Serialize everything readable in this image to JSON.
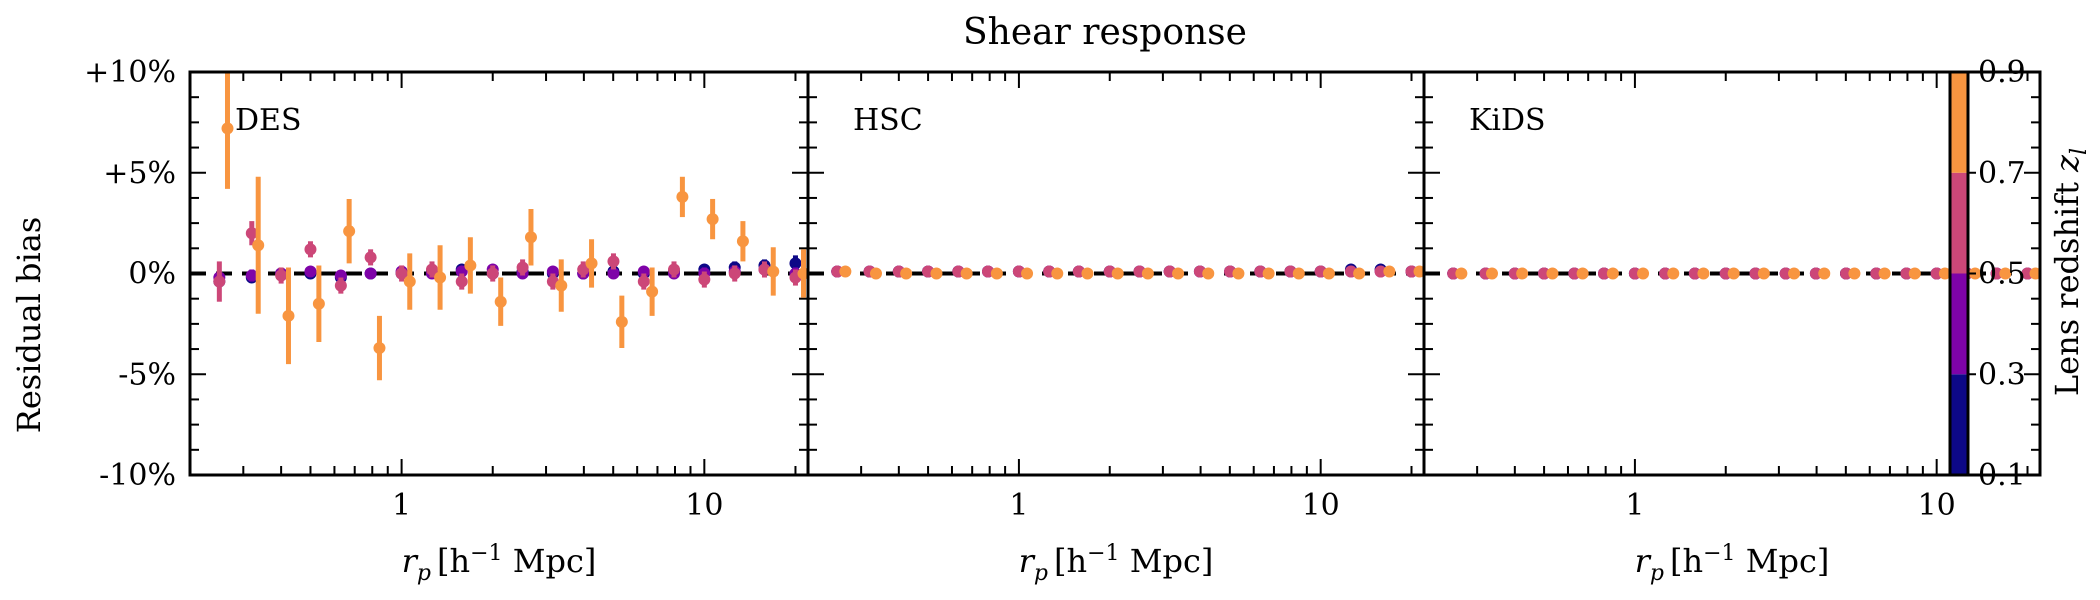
{
  "chart_data": {
    "type": "scatter",
    "title": "Shear response",
    "ylabel": "Residual bias",
    "xlabel_parts": {
      "symbol": "r",
      "sub": "p",
      "bracket_open": "[h",
      "sup": "−1",
      "unit": " Mpc]"
    },
    "colorbar_label_parts": {
      "text": "Lens redshift ",
      "symbol": "z",
      "sub": "l"
    },
    "ylim": [
      -0.1,
      0.1
    ],
    "xlim": [
      0.2,
      22
    ],
    "x_scale": "log",
    "y_ticks": [
      {
        "value": 0.1,
        "label": "+10%"
      },
      {
        "value": 0.05,
        "label": "+5%"
      },
      {
        "value": 0.0,
        "label": "0%"
      },
      {
        "value": -0.05,
        "label": "-5%"
      },
      {
        "value": -0.1,
        "label": "-10%"
      }
    ],
    "x_ticks": [
      {
        "value": 1,
        "label": "1"
      },
      {
        "value": 10,
        "label": "10"
      }
    ],
    "colorbar": {
      "ticks": [
        "0.9",
        "0.7",
        "0.5",
        "0.3",
        "0.1"
      ],
      "bins": [
        {
          "range": [
            0.1,
            0.3
          ],
          "color": "#0d0887"
        },
        {
          "range": [
            0.3,
            0.5
          ],
          "color": "#7e03a8"
        },
        {
          "range": [
            0.5,
            0.7
          ],
          "color": "#cc4778"
        },
        {
          "range": [
            0.7,
            0.9
          ],
          "color": "#f89540"
        }
      ]
    },
    "panels": [
      {
        "label": "DES",
        "bins": [
          {
            "x": [
              0.25,
              0.32,
              0.4,
              0.5,
              0.63,
              0.79,
              1.0,
              1.26,
              1.58,
              2.0,
              2.51,
              3.16,
              3.98,
              5.01,
              6.31,
              7.94,
              10.0,
              12.6,
              15.8,
              20.0
            ],
            "y": [
              -0.004,
              -0.002,
              0.0,
              0.0,
              -0.002,
              0.0,
              0.0,
              0.001,
              0.002,
              0.0,
              0.001,
              0.0,
              0.0,
              0.001,
              0.0,
              0.001,
              0.002,
              0.003,
              0.004,
              0.005
            ],
            "err": [
              0.002,
              0.002,
              0.002,
              0.002,
              0.002,
              0.002,
              0.002,
              0.002,
              0.002,
              0.002,
              0.002,
              0.002,
              0.002,
              0.002,
              0.002,
              0.002,
              0.002,
              0.003,
              0.003,
              0.004
            ]
          },
          {
            "x": [
              0.25,
              0.32,
              0.4,
              0.5,
              0.63,
              0.79,
              1.0,
              1.26,
              1.58,
              2.0,
              2.51,
              3.16,
              3.98,
              5.01,
              6.31,
              7.94,
              10.0,
              12.6,
              15.8,
              20.0
            ],
            "y": [
              -0.002,
              -0.001,
              0.0,
              0.001,
              -0.001,
              0.0,
              0.001,
              0.0,
              0.001,
              0.002,
              0.0,
              0.001,
              0.0,
              0.0,
              0.001,
              0.0,
              0.0,
              0.001,
              0.002,
              0.0
            ],
            "err": [
              0.003,
              0.003,
              0.002,
              0.002,
              0.002,
              0.002,
              0.002,
              0.002,
              0.002,
              0.002,
              0.002,
              0.002,
              0.002,
              0.002,
              0.002,
              0.002,
              0.003,
              0.003,
              0.003,
              0.003
            ]
          },
          {
            "x": [
              0.25,
              0.32,
              0.4,
              0.5,
              0.63,
              0.79,
              1.0,
              1.26,
              1.58,
              2.0,
              2.51,
              3.16,
              3.98,
              5.01,
              6.31,
              7.94,
              10.0,
              12.6,
              15.8,
              20.0
            ],
            "y": [
              -0.004,
              0.02,
              -0.001,
              0.012,
              -0.006,
              0.008,
              0.0,
              0.002,
              -0.004,
              0.0,
              0.003,
              -0.004,
              0.002,
              0.006,
              -0.004,
              0.002,
              -0.003,
              0.0,
              0.002,
              -0.002
            ],
            "err": [
              0.01,
              0.006,
              0.004,
              0.004,
              0.004,
              0.004,
              0.004,
              0.004,
              0.004,
              0.004,
              0.004,
              0.004,
              0.004,
              0.004,
              0.004,
              0.004,
              0.004,
              0.004,
              0.004,
              0.004
            ]
          },
          {
            "x": [
              0.266,
              0.336,
              0.423,
              0.533,
              0.671,
              0.845,
              1.064,
              1.34,
              1.687,
              2.125,
              2.675,
              3.368,
              4.241,
              5.339,
              6.722,
              8.463,
              10.65,
              13.41,
              16.89,
              21.26
            ],
            "y": [
              0.072,
              0.014,
              -0.021,
              -0.015,
              0.021,
              -0.037,
              -0.004,
              -0.002,
              0.004,
              -0.014,
              0.018,
              -0.006,
              0.005,
              -0.024,
              -0.009,
              0.038,
              0.027,
              0.016,
              0.001,
              0.0
            ],
            "err": [
              0.03,
              0.034,
              0.024,
              0.019,
              0.016,
              0.016,
              0.014,
              0.016,
              0.014,
              0.012,
              0.014,
              0.013,
              0.012,
              0.013,
              0.012,
              0.01,
              0.01,
              0.01,
              0.012,
              0.012
            ]
          }
        ]
      },
      {
        "label": "HSC",
        "bins": [
          {
            "x": [
              0.25,
              0.32,
              0.4,
              0.5,
              0.63,
              0.79,
              1.0,
              1.26,
              1.58,
              2.0,
              2.51,
              3.16,
              3.98,
              5.01,
              6.31,
              7.94,
              10.0,
              12.6,
              15.8,
              20.0
            ],
            "y": [
              0.001,
              0.001,
              0.001,
              0.001,
              0.001,
              0.001,
              0.001,
              0.001,
              0.001,
              0.001,
              0.001,
              0.001,
              0.001,
              0.001,
              0.001,
              0.001,
              0.001,
              0.002,
              0.002,
              0.001
            ],
            "err": [
              0.001,
              0.001,
              0.001,
              0.001,
              0.001,
              0.001,
              0.001,
              0.001,
              0.001,
              0.001,
              0.001,
              0.001,
              0.001,
              0.001,
              0.001,
              0.001,
              0.001,
              0.002,
              0.001,
              0.001
            ]
          },
          {
            "x": [
              0.25,
              0.32,
              0.4,
              0.5,
              0.63,
              0.79,
              1.0,
              1.26,
              1.58,
              2.0,
              2.51,
              3.16,
              3.98,
              5.01,
              6.31,
              7.94,
              10.0,
              12.6,
              15.8,
              20.0
            ],
            "y": [
              0.001,
              0.001,
              0.001,
              0.001,
              0.001,
              0.001,
              0.001,
              0.001,
              0.001,
              0.001,
              0.001,
              0.001,
              0.001,
              0.001,
              0.001,
              0.001,
              0.001,
              0.001,
              0.001,
              0.001
            ],
            "err": [
              0.001,
              0.001,
              0.001,
              0.001,
              0.001,
              0.001,
              0.001,
              0.001,
              0.001,
              0.001,
              0.001,
              0.001,
              0.001,
              0.001,
              0.001,
              0.001,
              0.001,
              0.001,
              0.001,
              0.001
            ]
          },
          {
            "x": [
              0.25,
              0.32,
              0.4,
              0.5,
              0.63,
              0.79,
              1.0,
              1.26,
              1.58,
              2.0,
              2.51,
              3.16,
              3.98,
              5.01,
              6.31,
              7.94,
              10.0,
              12.6,
              15.8,
              20.0
            ],
            "y": [
              0.001,
              0.001,
              0.001,
              0.001,
              0.001,
              0.001,
              0.001,
              0.001,
              0.001,
              0.001,
              0.001,
              0.001,
              0.001,
              0.001,
              0.001,
              0.001,
              0.001,
              0.001,
              0.001,
              0.001
            ],
            "err": [
              0.001,
              0.001,
              0.001,
              0.001,
              0.001,
              0.001,
              0.001,
              0.001,
              0.001,
              0.001,
              0.001,
              0.001,
              0.001,
              0.001,
              0.001,
              0.001,
              0.001,
              0.001,
              0.001,
              0.001
            ]
          },
          {
            "x": [
              0.266,
              0.336,
              0.423,
              0.533,
              0.671,
              0.845,
              1.064,
              1.34,
              1.687,
              2.125,
              2.675,
              3.368,
              4.241,
              5.339,
              6.722,
              8.463,
              10.65,
              13.41,
              16.89,
              21.26
            ],
            "y": [
              0.001,
              0.0,
              0.0,
              0.0,
              0.0,
              0.0,
              0.0,
              0.0,
              0.0,
              0.0,
              0.0,
              0.0,
              0.0,
              0.0,
              0.0,
              0.0,
              0.0,
              0.0,
              0.001,
              0.001
            ],
            "err": [
              0.001,
              0.001,
              0.001,
              0.001,
              0.001,
              0.001,
              0.001,
              0.001,
              0.001,
              0.001,
              0.001,
              0.001,
              0.001,
              0.001,
              0.001,
              0.001,
              0.001,
              0.001,
              0.001,
              0.001
            ]
          }
        ]
      },
      {
        "label": "KiDS",
        "bins": [
          {
            "x": [
              0.25,
              0.32,
              0.4,
              0.5,
              0.63,
              0.79,
              1.0,
              1.26,
              1.58,
              2.0,
              2.51,
              3.16,
              3.98,
              5.01,
              6.31,
              7.94,
              10.0,
              12.6,
              15.8,
              20.0
            ],
            "y": [
              0.0,
              0.0,
              0.0,
              0.0,
              0.0,
              0.0,
              0.0,
              0.0,
              0.0,
              0.0,
              0.0,
              0.0,
              0.0,
              0.0,
              0.0,
              0.0,
              0.0,
              0.0,
              0.0,
              0.0
            ],
            "err": [
              0.001,
              0.001,
              0.001,
              0.001,
              0.001,
              0.001,
              0.001,
              0.001,
              0.001,
              0.001,
              0.001,
              0.001,
              0.001,
              0.001,
              0.001,
              0.001,
              0.001,
              0.001,
              0.001,
              0.001
            ]
          },
          {
            "x": [
              0.25,
              0.32,
              0.4,
              0.5,
              0.63,
              0.79,
              1.0,
              1.26,
              1.58,
              2.0,
              2.51,
              3.16,
              3.98,
              5.01,
              6.31,
              7.94,
              10.0,
              12.6,
              15.8,
              20.0
            ],
            "y": [
              0.0,
              0.0,
              0.0,
              0.0,
              0.0,
              0.0,
              0.0,
              0.0,
              0.0,
              0.0,
              0.0,
              0.0,
              0.0,
              0.0,
              0.0,
              0.0,
              0.0,
              0.0,
              0.0,
              0.0
            ],
            "err": [
              0.001,
              0.001,
              0.001,
              0.001,
              0.001,
              0.001,
              0.001,
              0.001,
              0.001,
              0.001,
              0.001,
              0.001,
              0.001,
              0.001,
              0.001,
              0.001,
              0.001,
              0.001,
              0.001,
              0.001
            ]
          },
          {
            "x": [
              0.25,
              0.32,
              0.4,
              0.5,
              0.63,
              0.79,
              1.0,
              1.26,
              1.58,
              2.0,
              2.51,
              3.16,
              3.98,
              5.01,
              6.31,
              7.94,
              10.0,
              12.6,
              15.8,
              20.0
            ],
            "y": [
              0.0,
              0.0,
              0.0,
              0.0,
              0.0,
              0.0,
              0.0,
              0.0,
              0.0,
              0.0,
              0.0,
              0.0,
              0.0,
              0.0,
              0.0,
              0.0,
              0.0,
              0.0,
              0.0,
              0.0
            ],
            "err": [
              0.001,
              0.001,
              0.001,
              0.001,
              0.001,
              0.001,
              0.001,
              0.001,
              0.001,
              0.001,
              0.001,
              0.001,
              0.001,
              0.001,
              0.001,
              0.001,
              0.001,
              0.001,
              0.001,
              0.001
            ]
          },
          {
            "x": [
              0.266,
              0.336,
              0.423,
              0.533,
              0.671,
              0.845,
              1.064,
              1.34,
              1.687,
              2.125,
              2.675,
              3.368,
              4.241,
              5.339,
              6.722,
              8.463,
              10.65,
              13.41,
              16.89,
              21.26
            ],
            "y": [
              0.0,
              0.0,
              0.0,
              0.0,
              0.0,
              0.0,
              0.0,
              0.0,
              0.0,
              0.0,
              0.0,
              0.0,
              0.0,
              0.0,
              0.0,
              0.0,
              0.0,
              0.0,
              0.0,
              0.0
            ],
            "err": [
              0.001,
              0.001,
              0.001,
              0.001,
              0.001,
              0.001,
              0.001,
              0.001,
              0.001,
              0.001,
              0.001,
              0.001,
              0.001,
              0.001,
              0.001,
              0.001,
              0.001,
              0.001,
              0.001,
              0.001
            ]
          }
        ]
      }
    ]
  }
}
